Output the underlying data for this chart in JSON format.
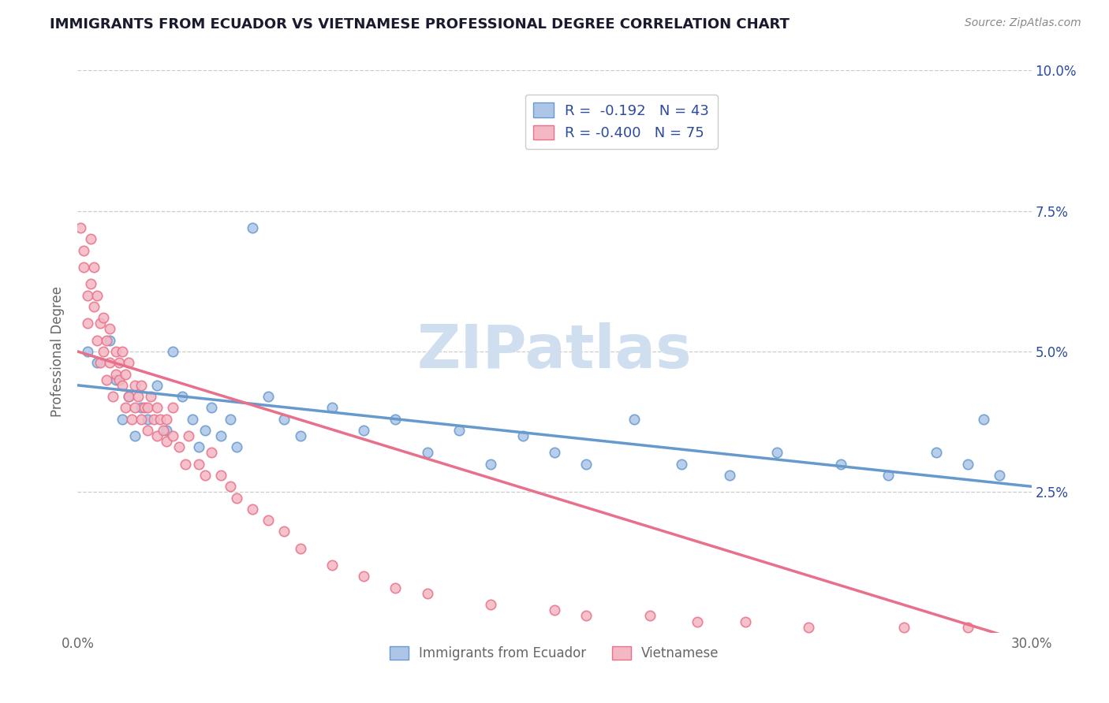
{
  "title": "IMMIGRANTS FROM ECUADOR VS VIETNAMESE PROFESSIONAL DEGREE CORRELATION CHART",
  "source_text": "Source: ZipAtlas.com",
  "ylabel": "Professional Degree",
  "xlim": [
    0.0,
    0.3
  ],
  "ylim": [
    0.0,
    0.1
  ],
  "ecuador_color": "#6699cc",
  "ecuador_fill": "#adc6e8",
  "vietnamese_color": "#e8708a",
  "vietnamese_fill": "#f4b8c4",
  "ecuador_R": -0.192,
  "ecuador_N": 43,
  "vietnamese_R": -0.4,
  "vietnamese_N": 75,
  "ecuador_scatter_x": [
    0.003,
    0.006,
    0.01,
    0.012,
    0.014,
    0.016,
    0.018,
    0.02,
    0.022,
    0.025,
    0.028,
    0.03,
    0.033,
    0.036,
    0.038,
    0.04,
    0.042,
    0.045,
    0.048,
    0.05,
    0.055,
    0.06,
    0.065,
    0.07,
    0.08,
    0.09,
    0.1,
    0.11,
    0.12,
    0.13,
    0.14,
    0.15,
    0.16,
    0.175,
    0.19,
    0.205,
    0.22,
    0.24,
    0.255,
    0.27,
    0.28,
    0.285,
    0.29
  ],
  "ecuador_scatter_y": [
    0.05,
    0.048,
    0.052,
    0.045,
    0.038,
    0.042,
    0.035,
    0.04,
    0.038,
    0.044,
    0.036,
    0.05,
    0.042,
    0.038,
    0.033,
    0.036,
    0.04,
    0.035,
    0.038,
    0.033,
    0.072,
    0.042,
    0.038,
    0.035,
    0.04,
    0.036,
    0.038,
    0.032,
    0.036,
    0.03,
    0.035,
    0.032,
    0.03,
    0.038,
    0.03,
    0.028,
    0.032,
    0.03,
    0.028,
    0.032,
    0.03,
    0.038,
    0.028
  ],
  "vietnamese_scatter_x": [
    0.001,
    0.002,
    0.002,
    0.003,
    0.003,
    0.004,
    0.004,
    0.005,
    0.005,
    0.006,
    0.006,
    0.007,
    0.007,
    0.008,
    0.008,
    0.009,
    0.009,
    0.01,
    0.01,
    0.011,
    0.012,
    0.012,
    0.013,
    0.013,
    0.014,
    0.014,
    0.015,
    0.015,
    0.016,
    0.016,
    0.017,
    0.018,
    0.018,
    0.019,
    0.02,
    0.02,
    0.021,
    0.022,
    0.022,
    0.023,
    0.024,
    0.025,
    0.025,
    0.026,
    0.027,
    0.028,
    0.028,
    0.03,
    0.03,
    0.032,
    0.034,
    0.035,
    0.038,
    0.04,
    0.042,
    0.045,
    0.048,
    0.05,
    0.055,
    0.06,
    0.065,
    0.07,
    0.08,
    0.09,
    0.1,
    0.11,
    0.13,
    0.15,
    0.16,
    0.18,
    0.195,
    0.21,
    0.23,
    0.26,
    0.28
  ],
  "vietnamese_scatter_y": [
    0.072,
    0.065,
    0.068,
    0.055,
    0.06,
    0.07,
    0.062,
    0.058,
    0.065,
    0.052,
    0.06,
    0.048,
    0.055,
    0.05,
    0.056,
    0.045,
    0.052,
    0.048,
    0.054,
    0.042,
    0.05,
    0.046,
    0.045,
    0.048,
    0.044,
    0.05,
    0.04,
    0.046,
    0.042,
    0.048,
    0.038,
    0.044,
    0.04,
    0.042,
    0.038,
    0.044,
    0.04,
    0.036,
    0.04,
    0.042,
    0.038,
    0.035,
    0.04,
    0.038,
    0.036,
    0.034,
    0.038,
    0.035,
    0.04,
    0.033,
    0.03,
    0.035,
    0.03,
    0.028,
    0.032,
    0.028,
    0.026,
    0.024,
    0.022,
    0.02,
    0.018,
    0.015,
    0.012,
    0.01,
    0.008,
    0.007,
    0.005,
    0.004,
    0.003,
    0.003,
    0.002,
    0.002,
    0.001,
    0.001,
    0.001
  ],
  "title_color": "#1a1a2e",
  "label_color": "#2c4a9e",
  "axis_label_color": "#666666",
  "grid_color": "#cccccc",
  "background_color": "#ffffff",
  "watermark_color": "#d0dff0",
  "source_color": "#888888"
}
